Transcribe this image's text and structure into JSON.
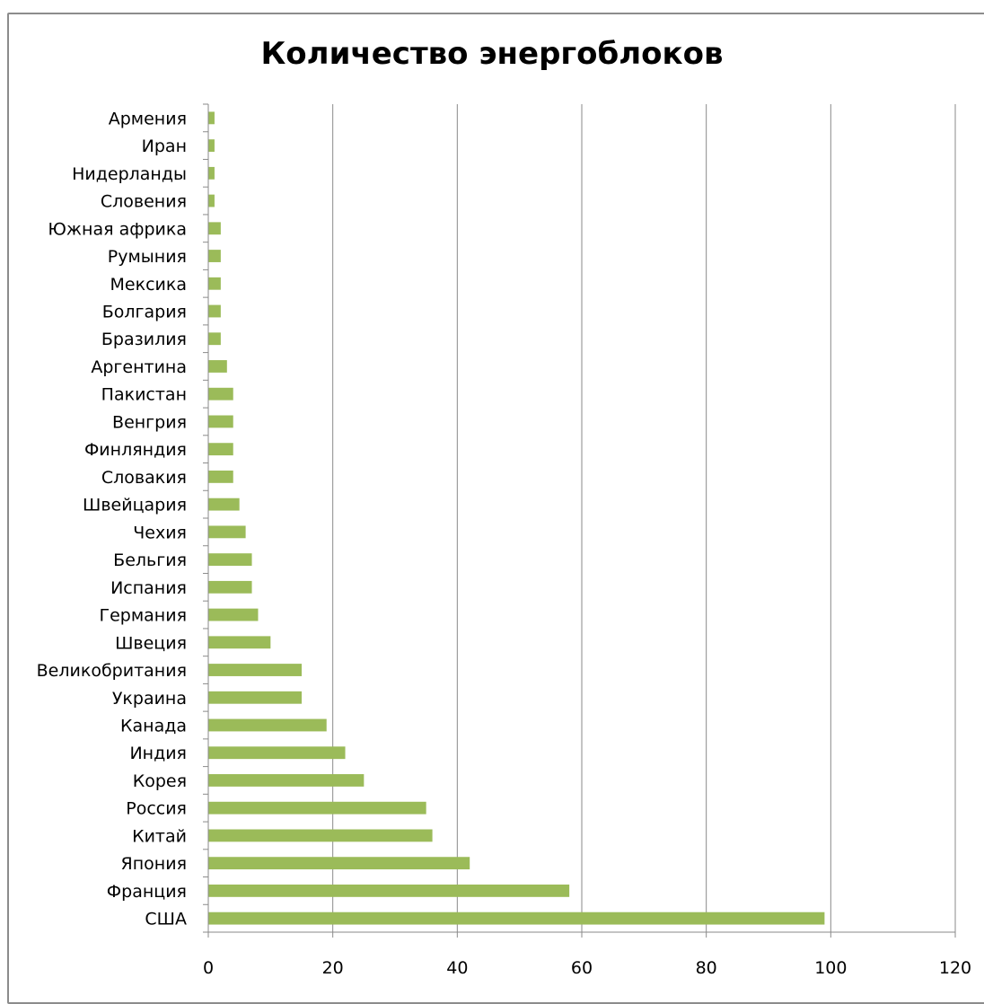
{
  "chart_data": {
    "type": "bar",
    "orientation": "horizontal",
    "title": "Количество энергоблоков",
    "categories": [
      "США",
      "Франция",
      "Япония",
      "Китай",
      "Россия",
      "Корея",
      "Индия",
      "Канада",
      "Украина",
      "Великобритания",
      "Швеция",
      "Германия",
      "Испания",
      "Бельгия",
      "Чехия",
      "Швейцария",
      "Словакия",
      "Финляндия",
      "Венгрия",
      "Пакистан",
      "Аргентина",
      "Бразилия",
      "Болгария",
      "Мексика",
      "Румыния",
      "Южная африка",
      "Словения",
      "Нидерланды",
      "Иран",
      "Армения"
    ],
    "values": [
      99,
      58,
      42,
      36,
      35,
      25,
      22,
      19,
      15,
      15,
      10,
      8,
      7,
      7,
      6,
      5,
      4,
      4,
      4,
      4,
      3,
      2,
      2,
      2,
      2,
      2,
      1,
      1,
      1,
      1
    ],
    "xlim": [
      0,
      120
    ],
    "xticks": [
      "0",
      "20",
      "40",
      "60",
      "80",
      "100",
      "120"
    ],
    "xlabel": "",
    "ylabel": "",
    "grid": "vertical",
    "legend": "none",
    "bar_color": "#9bbb59"
  }
}
